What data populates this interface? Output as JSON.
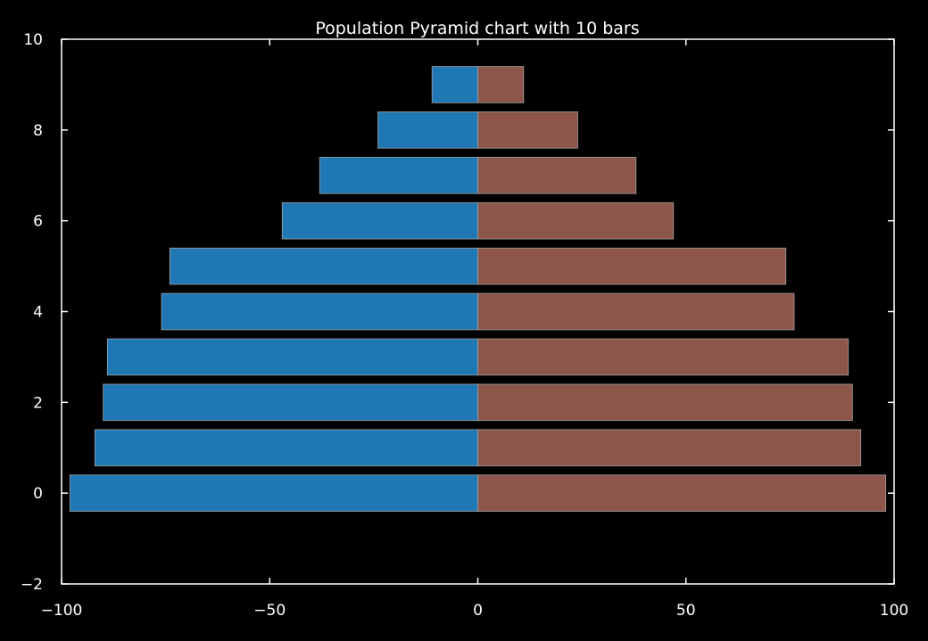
{
  "chart_data": {
    "type": "bar",
    "orientation": "horizontal",
    "title": "Population Pyramid chart with 10 bars",
    "xlabel": "",
    "ylabel": "",
    "xlim": [
      -100,
      100
    ],
    "ylim": [
      -2,
      10
    ],
    "xticks": [
      -100,
      -50,
      0,
      50,
      100
    ],
    "xtick_labels": [
      "−100",
      "−50",
      "0",
      "50",
      "100"
    ],
    "yticks": [
      -2,
      0,
      2,
      4,
      6,
      8,
      10
    ],
    "ytick_labels": [
      "−2",
      "0",
      "2",
      "4",
      "6",
      "8",
      "10"
    ],
    "grid": false,
    "legend": "none",
    "categories": [
      0,
      1,
      2,
      3,
      4,
      5,
      6,
      7,
      8,
      9
    ],
    "series": [
      {
        "color": "#1f77b4",
        "values": [
          -98,
          -92,
          -90,
          -89,
          -76,
          -74,
          -47,
          -38,
          -24,
          -11
        ]
      },
      {
        "color": "#8c564b",
        "values": [
          98,
          92,
          90,
          89,
          76,
          74,
          47,
          38,
          24,
          11
        ]
      }
    ],
    "colors": {
      "background": "#000000",
      "axis": "#ffffff",
      "bar_edge": "#a0a0a0"
    }
  }
}
